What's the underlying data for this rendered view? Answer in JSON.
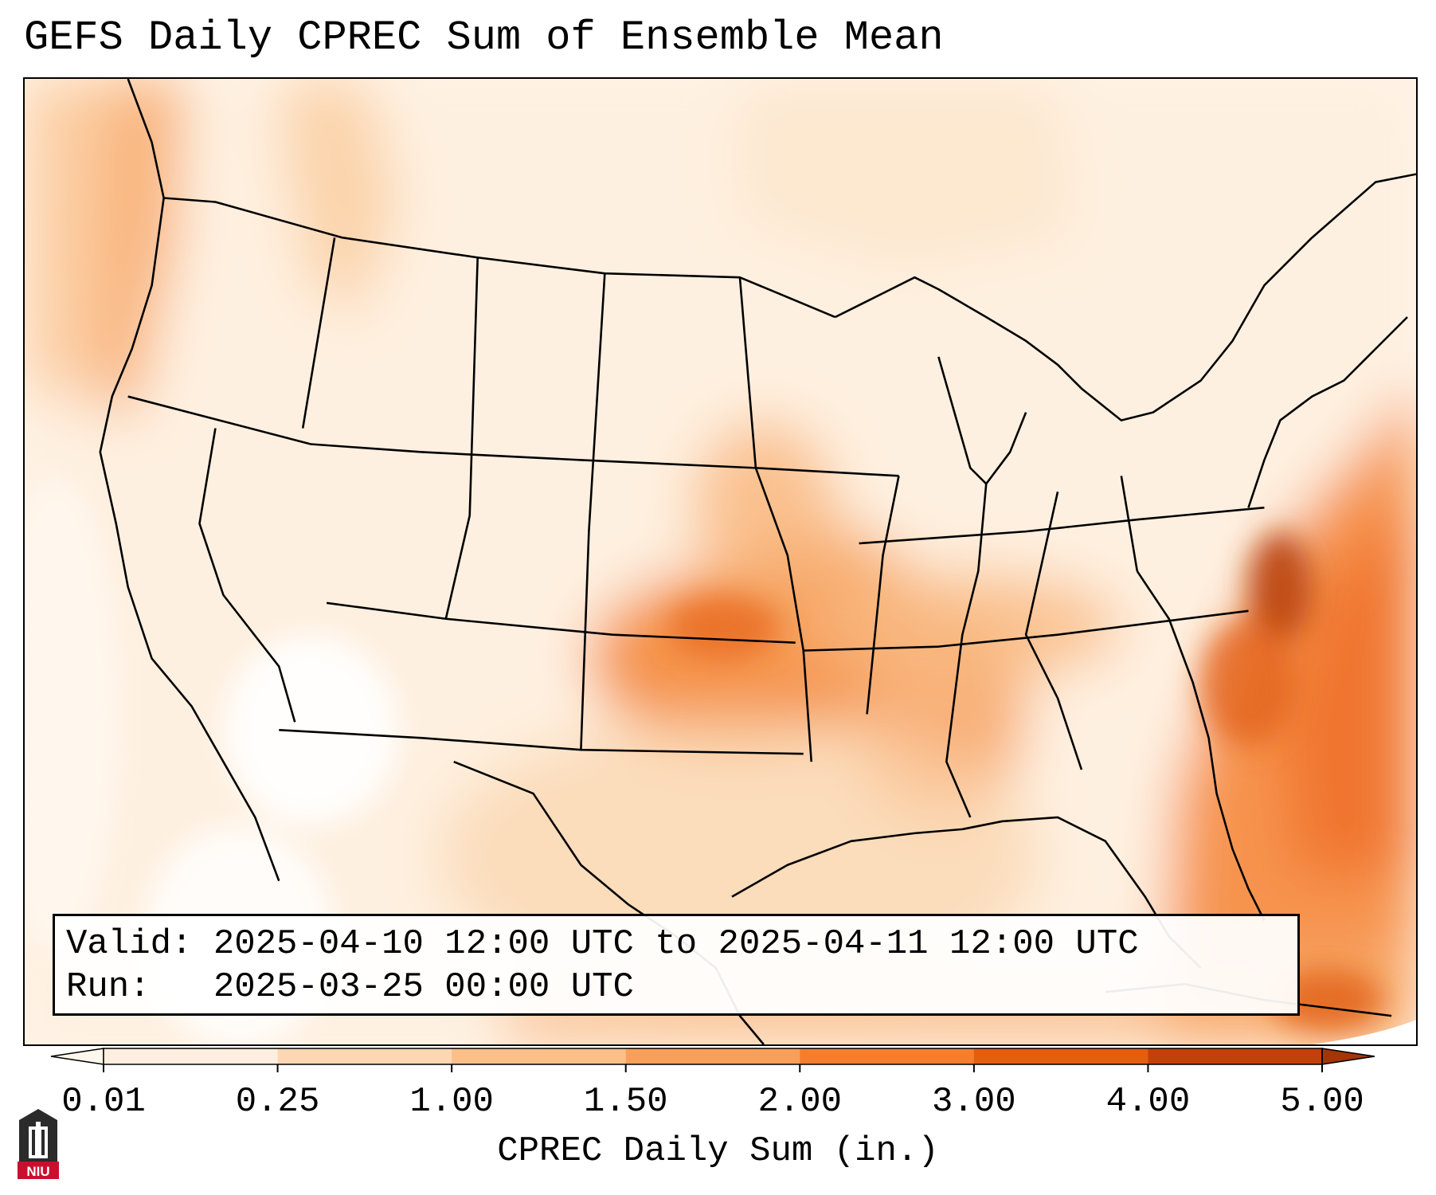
{
  "title": "GEFS Daily CPREC Sum of Ensemble Mean",
  "info": {
    "valid_label": "Valid:",
    "valid_value": "2025-04-10 12:00 UTC to 2025-04-11 12:00 UTC",
    "run_label": "Run:  ",
    "run_value": "2025-03-25 00:00 UTC"
  },
  "colorbar": {
    "label": "CPREC Daily Sum (in.)",
    "ticks": [
      "0.01",
      "0.25",
      "1.00",
      "1.50",
      "2.00",
      "3.00",
      "4.00",
      "5.00"
    ],
    "colors": [
      "#fdeedf",
      "#fdd7b4",
      "#fcbf88",
      "#f99f5a",
      "#f47e2e",
      "#e55d0f",
      "#c2410a"
    ],
    "under_color": "#fff6ec",
    "over_color": "#a33506"
  },
  "logo": {
    "text": "NIU",
    "icon": "niu-logo-icon",
    "color": "#c8102e"
  }
}
